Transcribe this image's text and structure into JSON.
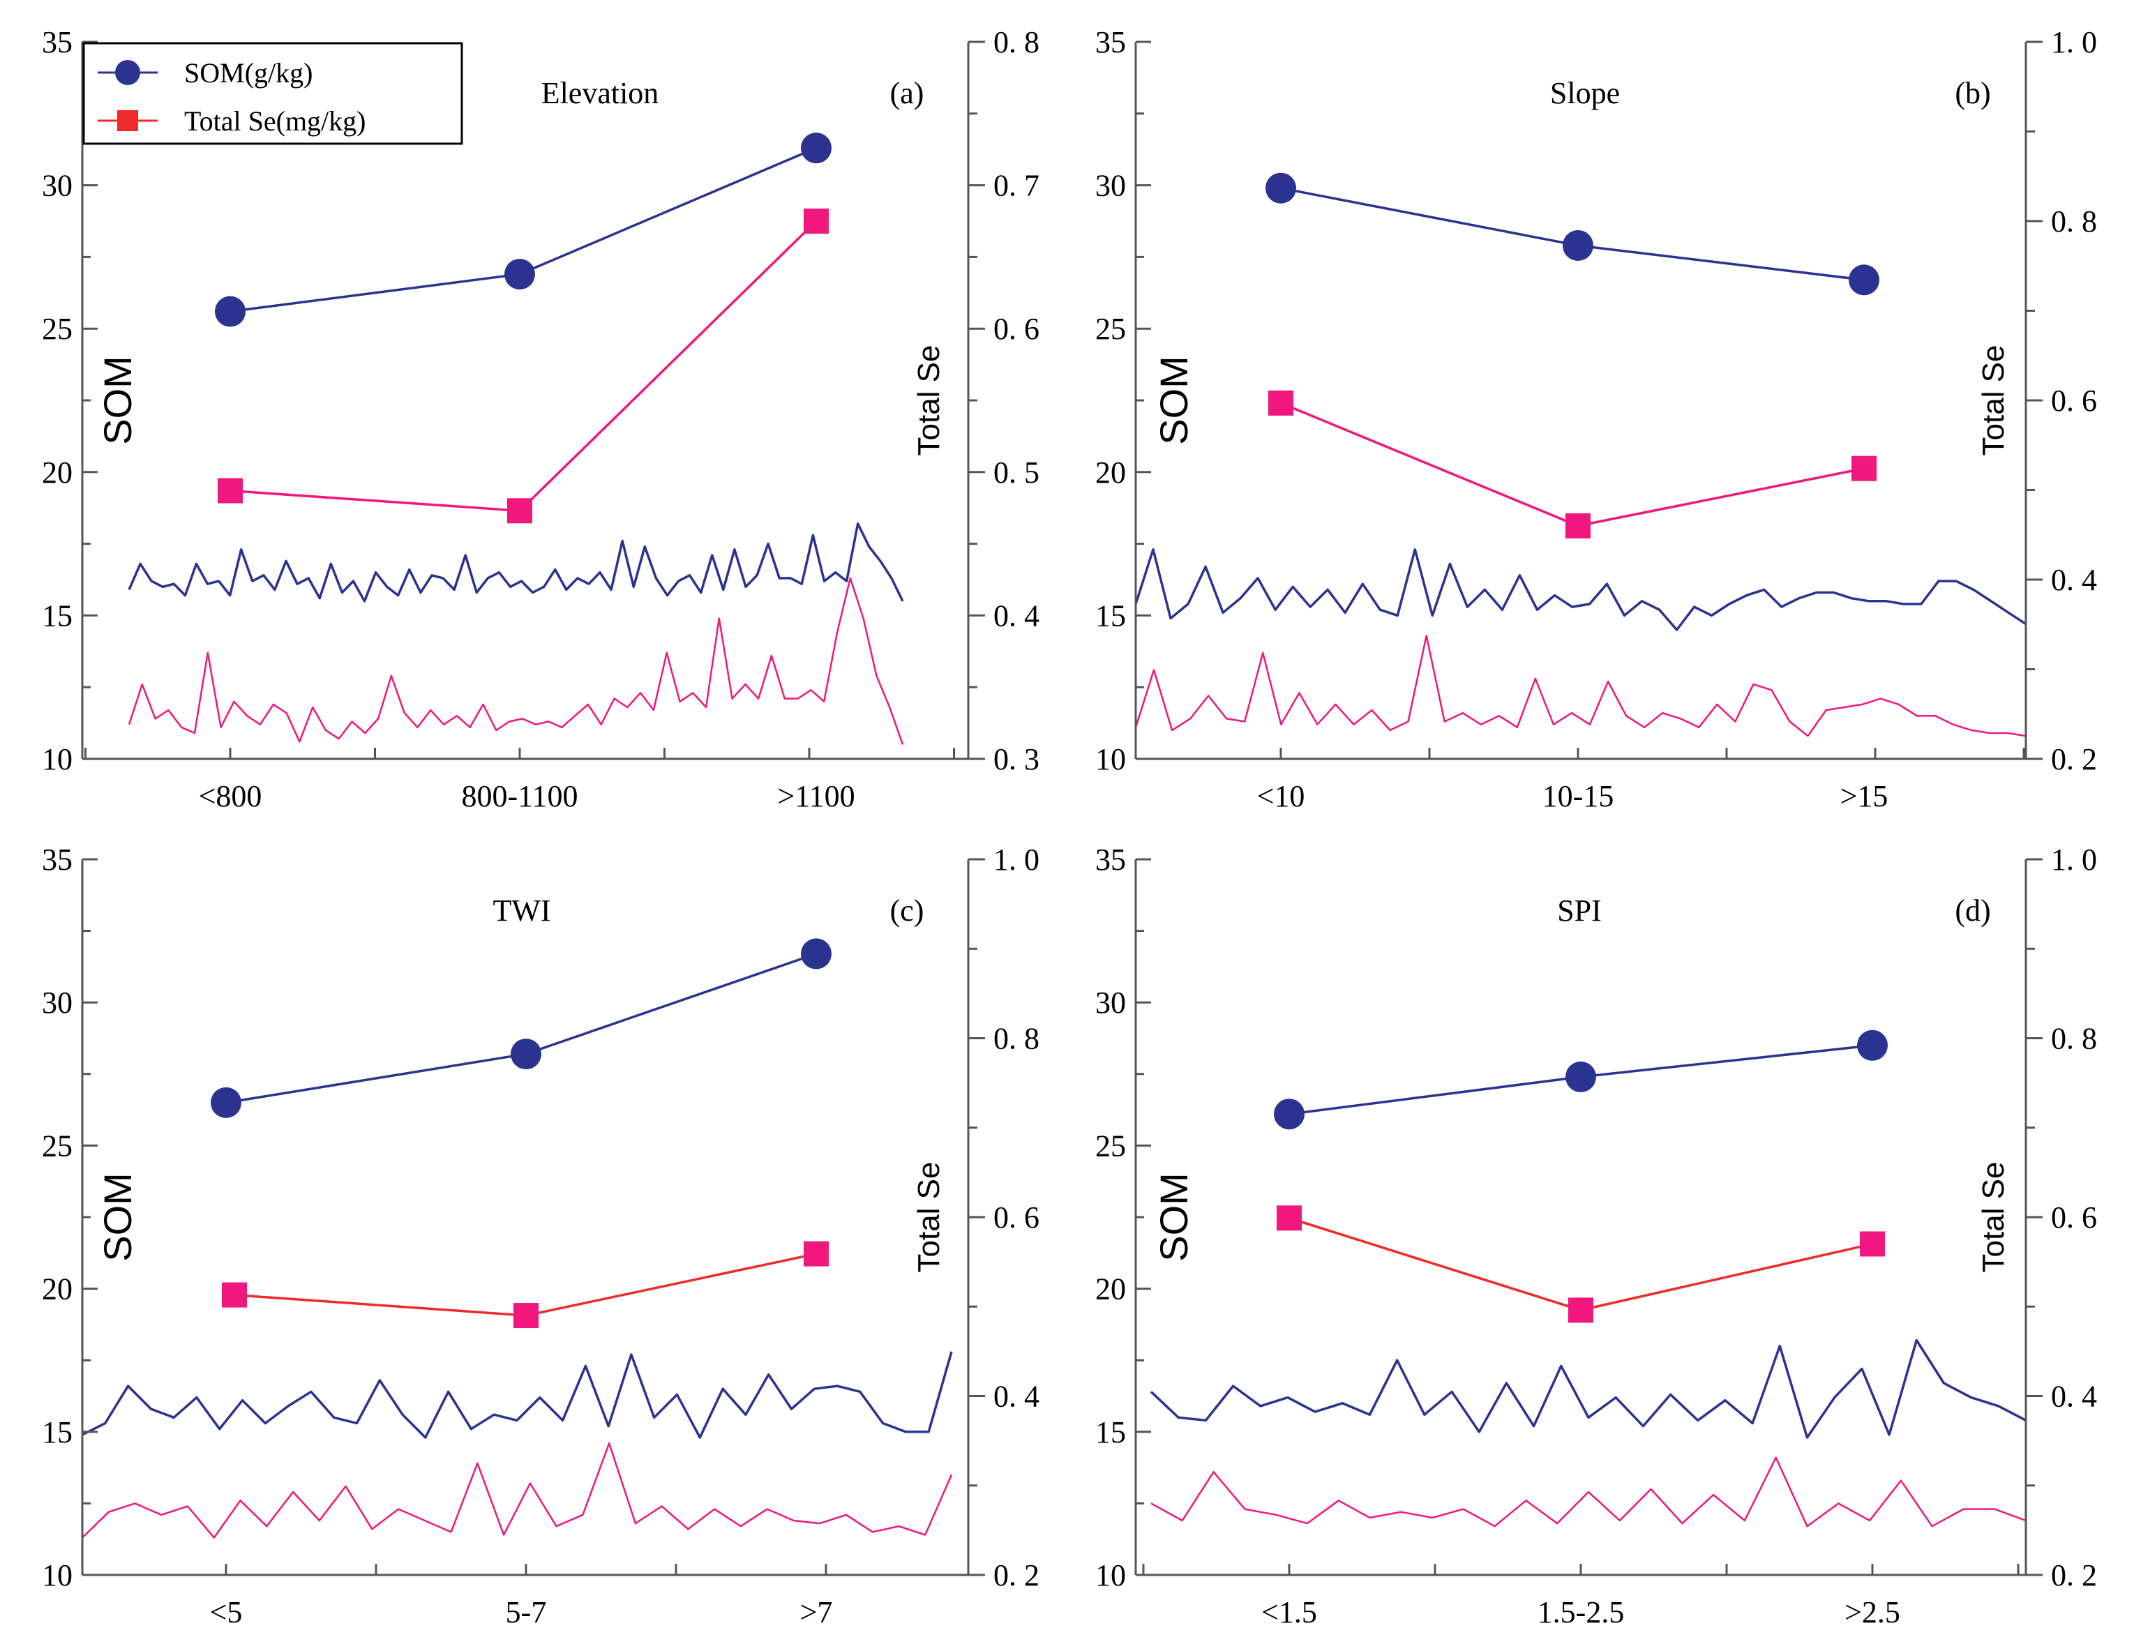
{
  "legend": {
    "items": [
      {
        "label": "SOM(g/kg)",
        "marker": "circle",
        "color": "#2b3390"
      },
      {
        "label": "Total Se(mg/kg)",
        "marker": "square",
        "color": "#ee2a2a"
      }
    ]
  },
  "chart_data": [
    {
      "type": "line",
      "panel_label": "(a)",
      "title": "Elevation",
      "ylabel_left": "SOM",
      "ylabel_right": "Total Se",
      "categories": [
        "<800",
        "800-1100",
        ">1100"
      ],
      "ylim_left": [
        10,
        35
      ],
      "yticks_left": [
        "10",
        "15",
        "20",
        "25",
        "30",
        "35"
      ],
      "ylim_right": [
        0.3,
        0.8
      ],
      "yticks_right": [
        "0. 3",
        "0. 4",
        "0. 5",
        "0. 6",
        "0. 7",
        "0. 8"
      ],
      "series": [
        {
          "name": "SOM(g/kg)",
          "axis": "left",
          "values": [
            25.6,
            26.9,
            31.3
          ],
          "color": "#2b3390"
        },
        {
          "name": "Total Se(mg/kg)",
          "axis": "right",
          "values": [
            0.487,
            0.473,
            0.675
          ],
          "color": "#f0177f"
        }
      ],
      "background_traces": [
        {
          "color": "#2b3390",
          "values": [
            15.9,
            16.8,
            16.2,
            16.0,
            16.1,
            15.7,
            16.8,
            16.1,
            16.2,
            15.7,
            17.3,
            16.2,
            16.4,
            15.9,
            16.9,
            16.1,
            16.3,
            15.6,
            16.8,
            15.8,
            16.2,
            15.5,
            16.5,
            16.0,
            15.7,
            16.6,
            15.8,
            16.4,
            16.3,
            15.9,
            17.1,
            15.8,
            16.3,
            16.5,
            16.0,
            16.2,
            15.8,
            16.0,
            16.6,
            15.9,
            16.3,
            16.1,
            16.5,
            15.9,
            17.6,
            16.0,
            17.4,
            16.3,
            15.7,
            16.2,
            16.4,
            15.8,
            17.1,
            15.9,
            17.3,
            16.0,
            16.4,
            17.5,
            16.3,
            16.3,
            16.1,
            17.8,
            16.2,
            16.5,
            16.2,
            18.2,
            17.4,
            16.9,
            16.3,
            15.5
          ]
        },
        {
          "color": "#f0177f",
          "values": [
            11.2,
            12.6,
            11.4,
            11.7,
            11.1,
            10.9,
            13.7,
            11.1,
            12.0,
            11.5,
            11.2,
            11.9,
            11.6,
            10.6,
            11.8,
            11.0,
            10.7,
            11.3,
            10.9,
            11.4,
            12.9,
            11.6,
            11.1,
            11.7,
            11.2,
            11.5,
            11.1,
            11.9,
            11.0,
            11.3,
            11.4,
            11.2,
            11.3,
            11.1,
            11.5,
            11.9,
            11.2,
            12.1,
            11.8,
            12.3,
            11.7,
            13.7,
            12.0,
            12.3,
            11.8,
            14.9,
            12.1,
            12.6,
            12.1,
            13.6,
            12.1,
            12.1,
            12.4,
            12.0,
            14.4,
            16.3,
            14.9,
            12.9,
            11.8,
            10.5
          ]
        }
      ]
    },
    {
      "type": "line",
      "panel_label": "(b)",
      "title": "Slope",
      "ylabel_left": "SOM",
      "ylabel_right": "Total Se",
      "categories": [
        "<10",
        "10-15",
        ">15"
      ],
      "ylim_left": [
        10,
        35
      ],
      "yticks_left": [
        "10",
        "15",
        "20",
        "25",
        "30",
        "35"
      ],
      "ylim_right": [
        0.2,
        1.0
      ],
      "yticks_right": [
        "0. 2",
        "0. 4",
        "0. 6",
        "0. 8",
        "1. 0"
      ],
      "series": [
        {
          "name": "SOM(g/kg)",
          "axis": "left",
          "values": [
            29.9,
            27.9,
            26.7
          ],
          "color": "#2b3390"
        },
        {
          "name": "Total Se(mg/kg)",
          "axis": "right",
          "values": [
            0.597,
            0.46,
            0.524
          ],
          "color": "#f0177f"
        }
      ],
      "background_traces": [
        {
          "color": "#2b3390",
          "values": [
            15.4,
            17.3,
            14.9,
            15.4,
            16.7,
            15.1,
            15.6,
            16.3,
            15.2,
            16.0,
            15.3,
            15.9,
            15.1,
            16.1,
            15.2,
            15.0,
            17.3,
            15.0,
            16.8,
            15.3,
            15.9,
            15.2,
            16.4,
            15.2,
            15.7,
            15.3,
            15.4,
            16.1,
            15.0,
            15.5,
            15.2,
            14.5,
            15.3,
            15.0,
            15.4,
            15.7,
            15.9,
            15.3,
            15.6,
            15.8,
            15.8,
            15.6,
            15.5,
            15.5,
            15.4,
            15.4,
            16.2,
            16.2,
            15.9,
            15.5,
            15.1,
            14.7
          ]
        },
        {
          "color": "#f0177f",
          "values": [
            11.1,
            13.1,
            11.0,
            11.4,
            12.2,
            11.4,
            11.3,
            13.7,
            11.2,
            12.3,
            11.2,
            11.9,
            11.2,
            11.7,
            11.0,
            11.3,
            14.3,
            11.3,
            11.6,
            11.2,
            11.5,
            11.1,
            12.8,
            11.2,
            11.6,
            11.2,
            12.7,
            11.5,
            11.1,
            11.6,
            11.4,
            11.1,
            11.9,
            11.3,
            12.6,
            12.4,
            11.3,
            10.8,
            11.7,
            11.8,
            11.9,
            12.1,
            11.9,
            11.5,
            11.5,
            11.2,
            11.0,
            10.9,
            10.9,
            10.8
          ]
        }
      ]
    },
    {
      "type": "line",
      "panel_label": "(c)",
      "title": "TWI",
      "ylabel_left": "SOM",
      "ylabel_right": "Total Se",
      "categories": [
        "<5",
        "5-7",
        ">7"
      ],
      "ylim_left": [
        10,
        35
      ],
      "yticks_left": [
        "10",
        "15",
        "20",
        "25",
        "30",
        "35"
      ],
      "ylim_right": [
        0.2,
        1.0
      ],
      "yticks_right": [
        "0. 2",
        "0. 4",
        "0. 6",
        "0. 8",
        "1. 0"
      ],
      "series": [
        {
          "name": "SOM(g/kg)",
          "axis": "left",
          "values": [
            26.5,
            28.2,
            31.7
          ],
          "color": "#2b3390"
        },
        {
          "name": "Total Se(mg/kg)",
          "axis": "right",
          "values": [
            0.513,
            0.49,
            0.559
          ],
          "color": "#ee2a2a"
        }
      ],
      "background_traces": [
        {
          "color": "#2b3390",
          "values": [
            14.9,
            15.3,
            16.6,
            15.8,
            15.5,
            16.2,
            15.1,
            16.1,
            15.3,
            15.9,
            16.4,
            15.5,
            15.3,
            16.8,
            15.6,
            14.8,
            16.4,
            15.1,
            15.6,
            15.4,
            16.2,
            15.4,
            17.3,
            15.2,
            17.7,
            15.5,
            16.3,
            14.8,
            16.5,
            15.6,
            17.0,
            15.8,
            16.5,
            16.6,
            16.4,
            15.3,
            15.0,
            15.0,
            17.8
          ]
        },
        {
          "color": "#f0177f",
          "values": [
            11.3,
            12.2,
            12.5,
            12.1,
            12.4,
            11.3,
            12.6,
            11.7,
            12.9,
            11.9,
            13.1,
            11.6,
            12.3,
            11.9,
            11.5,
            13.9,
            11.4,
            13.2,
            11.7,
            12.1,
            14.6,
            11.8,
            12.4,
            11.6,
            12.3,
            11.7,
            12.3,
            11.9,
            11.8,
            12.1,
            11.5,
            11.7,
            11.4,
            13.5
          ]
        }
      ]
    },
    {
      "type": "line",
      "panel_label": "(d)",
      "title": "SPI",
      "ylabel_left": "SOM",
      "ylabel_right": "Total Se",
      "categories": [
        "<1.5",
        "1.5-2.5",
        ">2.5"
      ],
      "ylim_left": [
        10,
        35
      ],
      "yticks_left": [
        "10",
        "15",
        "20",
        "25",
        "30",
        "35"
      ],
      "ylim_right": [
        0.2,
        1.0
      ],
      "yticks_right": [
        "0. 2",
        "0. 4",
        "0. 6",
        "0. 8",
        "1. 0"
      ],
      "series": [
        {
          "name": "SOM(g/kg)",
          "axis": "left",
          "values": [
            26.1,
            27.4,
            28.5
          ],
          "color": "#2b3390"
        },
        {
          "name": "Total Se(mg/kg)",
          "axis": "right",
          "values": [
            0.599,
            0.496,
            0.57
          ],
          "color": "#ee2a2a"
        }
      ],
      "background_traces": [
        {
          "color": "#2b3390",
          "values": [
            16.4,
            15.5,
            15.4,
            16.6,
            15.9,
            16.2,
            15.7,
            16.0,
            15.6,
            17.5,
            15.6,
            16.4,
            15.0,
            16.7,
            15.2,
            17.3,
            15.5,
            16.2,
            15.2,
            16.3,
            15.4,
            16.1,
            15.3,
            18.0,
            14.8,
            16.2,
            17.2,
            14.9,
            18.2,
            16.7,
            16.2,
            15.9,
            15.4
          ]
        },
        {
          "color": "#f0177f",
          "values": [
            12.5,
            11.9,
            13.6,
            12.3,
            12.1,
            11.8,
            12.6,
            12.0,
            12.2,
            12.0,
            12.3,
            11.7,
            12.6,
            11.8,
            12.9,
            11.9,
            13.0,
            11.8,
            12.8,
            11.9,
            14.1,
            11.7,
            12.5,
            11.9,
            13.3,
            11.7,
            12.3,
            12.3,
            11.9
          ]
        }
      ]
    }
  ]
}
